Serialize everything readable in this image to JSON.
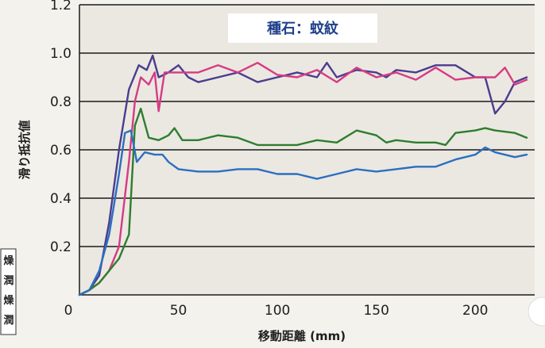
{
  "chart_data": {
    "type": "line",
    "title": "種石：蚊紋",
    "xlabel": "移動距離 (mm)",
    "ylabel": "滑り抵抗値",
    "xlim": [
      0,
      230
    ],
    "ylim": [
      0,
      1.2
    ],
    "x_ticks": [
      "0",
      "50",
      "100",
      "150",
      "200"
    ],
    "y_ticks": [
      "0.2",
      "0.4",
      "0.6",
      "0.8",
      "1.0",
      "1.2"
    ],
    "grid": true,
    "legend_fragments": [
      "燥",
      "潤",
      "燥",
      "潤"
    ],
    "colors": {
      "title_text": "#1f3f8a",
      "title_box": "#ffffff",
      "grid": "#1a1a1a",
      "plot_bg": "#ebe8e1"
    },
    "series": [
      {
        "color": "#4a3d8f",
        "points": [
          [
            0,
            0
          ],
          [
            5,
            0.02
          ],
          [
            10,
            0.08
          ],
          [
            15,
            0.3
          ],
          [
            20,
            0.6
          ],
          [
            25,
            0.85
          ],
          [
            30,
            0.95
          ],
          [
            34,
            0.93
          ],
          [
            37,
            0.99
          ],
          [
            40,
            0.9
          ],
          [
            45,
            0.92
          ],
          [
            50,
            0.95
          ],
          [
            55,
            0.9
          ],
          [
            60,
            0.88
          ],
          [
            70,
            0.9
          ],
          [
            80,
            0.92
          ],
          [
            90,
            0.88
          ],
          [
            100,
            0.9
          ],
          [
            110,
            0.92
          ],
          [
            120,
            0.9
          ],
          [
            125,
            0.96
          ],
          [
            130,
            0.9
          ],
          [
            140,
            0.93
          ],
          [
            150,
            0.92
          ],
          [
            155,
            0.9
          ],
          [
            160,
            0.93
          ],
          [
            170,
            0.92
          ],
          [
            180,
            0.95
          ],
          [
            190,
            0.95
          ],
          [
            200,
            0.9
          ],
          [
            205,
            0.9
          ],
          [
            210,
            0.75
          ],
          [
            215,
            0.8
          ],
          [
            220,
            0.88
          ],
          [
            226,
            0.9
          ]
        ]
      },
      {
        "color": "#d63b84",
        "points": [
          [
            0,
            0
          ],
          [
            5,
            0.02
          ],
          [
            10,
            0.05
          ],
          [
            15,
            0.1
          ],
          [
            20,
            0.2
          ],
          [
            25,
            0.55
          ],
          [
            28,
            0.8
          ],
          [
            31,
            0.9
          ],
          [
            35,
            0.87
          ],
          [
            38,
            0.92
          ],
          [
            40,
            0.76
          ],
          [
            43,
            0.92
          ],
          [
            50,
            0.92
          ],
          [
            60,
            0.92
          ],
          [
            70,
            0.95
          ],
          [
            80,
            0.92
          ],
          [
            90,
            0.96
          ],
          [
            100,
            0.91
          ],
          [
            110,
            0.9
          ],
          [
            120,
            0.93
          ],
          [
            130,
            0.88
          ],
          [
            140,
            0.94
          ],
          [
            150,
            0.9
          ],
          [
            160,
            0.92
          ],
          [
            170,
            0.89
          ],
          [
            180,
            0.94
          ],
          [
            190,
            0.89
          ],
          [
            200,
            0.9
          ],
          [
            210,
            0.9
          ],
          [
            215,
            0.94
          ],
          [
            220,
            0.87
          ],
          [
            226,
            0.89
          ]
        ]
      },
      {
        "color": "#2e7d2e",
        "points": [
          [
            0,
            0
          ],
          [
            5,
            0.02
          ],
          [
            10,
            0.05
          ],
          [
            15,
            0.1
          ],
          [
            20,
            0.15
          ],
          [
            25,
            0.25
          ],
          [
            28,
            0.7
          ],
          [
            31,
            0.77
          ],
          [
            35,
            0.65
          ],
          [
            40,
            0.64
          ],
          [
            45,
            0.66
          ],
          [
            48,
            0.69
          ],
          [
            52,
            0.64
          ],
          [
            60,
            0.64
          ],
          [
            70,
            0.66
          ],
          [
            80,
            0.65
          ],
          [
            90,
            0.62
          ],
          [
            100,
            0.62
          ],
          [
            110,
            0.62
          ],
          [
            120,
            0.64
          ],
          [
            130,
            0.63
          ],
          [
            140,
            0.68
          ],
          [
            150,
            0.66
          ],
          [
            155,
            0.63
          ],
          [
            160,
            0.64
          ],
          [
            170,
            0.63
          ],
          [
            180,
            0.63
          ],
          [
            185,
            0.62
          ],
          [
            190,
            0.67
          ],
          [
            200,
            0.68
          ],
          [
            205,
            0.69
          ],
          [
            210,
            0.68
          ],
          [
            220,
            0.67
          ],
          [
            226,
            0.65
          ]
        ]
      },
      {
        "color": "#2b6fc0",
        "points": [
          [
            0,
            0
          ],
          [
            5,
            0.02
          ],
          [
            10,
            0.1
          ],
          [
            15,
            0.25
          ],
          [
            20,
            0.5
          ],
          [
            23,
            0.67
          ],
          [
            26,
            0.68
          ],
          [
            29,
            0.55
          ],
          [
            33,
            0.59
          ],
          [
            38,
            0.58
          ],
          [
            42,
            0.58
          ],
          [
            45,
            0.55
          ],
          [
            50,
            0.52
          ],
          [
            60,
            0.51
          ],
          [
            70,
            0.51
          ],
          [
            80,
            0.52
          ],
          [
            90,
            0.52
          ],
          [
            100,
            0.5
          ],
          [
            110,
            0.5
          ],
          [
            120,
            0.48
          ],
          [
            130,
            0.5
          ],
          [
            140,
            0.52
          ],
          [
            150,
            0.51
          ],
          [
            160,
            0.52
          ],
          [
            170,
            0.53
          ],
          [
            180,
            0.53
          ],
          [
            190,
            0.56
          ],
          [
            200,
            0.58
          ],
          [
            205,
            0.61
          ],
          [
            210,
            0.59
          ],
          [
            220,
            0.57
          ],
          [
            226,
            0.58
          ]
        ]
      }
    ]
  }
}
